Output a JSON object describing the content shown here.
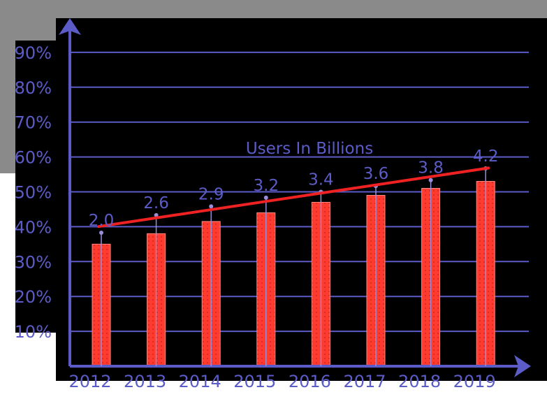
{
  "chart_data": {
    "type": "bar",
    "title": "",
    "xlabel": "",
    "ylabel": "",
    "categories": [
      "2012",
      "2013",
      "2014",
      "2015",
      "2016",
      "2017",
      "2018",
      "2019"
    ],
    "series": [
      {
        "values": [
          35,
          38,
          41.5,
          44,
          47,
          49,
          51,
          53
        ]
      },
      {
        "name": "Users In Billions",
        "type": "line",
        "values": [
          2.0,
          2.6,
          2.9,
          3.2,
          3.4,
          3.6,
          3.8,
          4.2
        ],
        "data_labels": [
          "2.0",
          "2.6",
          "2.9",
          "3.2",
          "3.4",
          "3.6",
          "3.8",
          "4.2"
        ]
      }
    ],
    "y_ticks": [
      "10%",
      "20%",
      "30%",
      "40%",
      "50%",
      "60%",
      "70%",
      "80%",
      "90%"
    ],
    "ylim": [
      0,
      100
    ],
    "grid": true,
    "colors": {
      "bar": "#ff3b30",
      "line": "#ee2222",
      "axis": "#5c5cc8",
      "background": "#000000"
    }
  }
}
